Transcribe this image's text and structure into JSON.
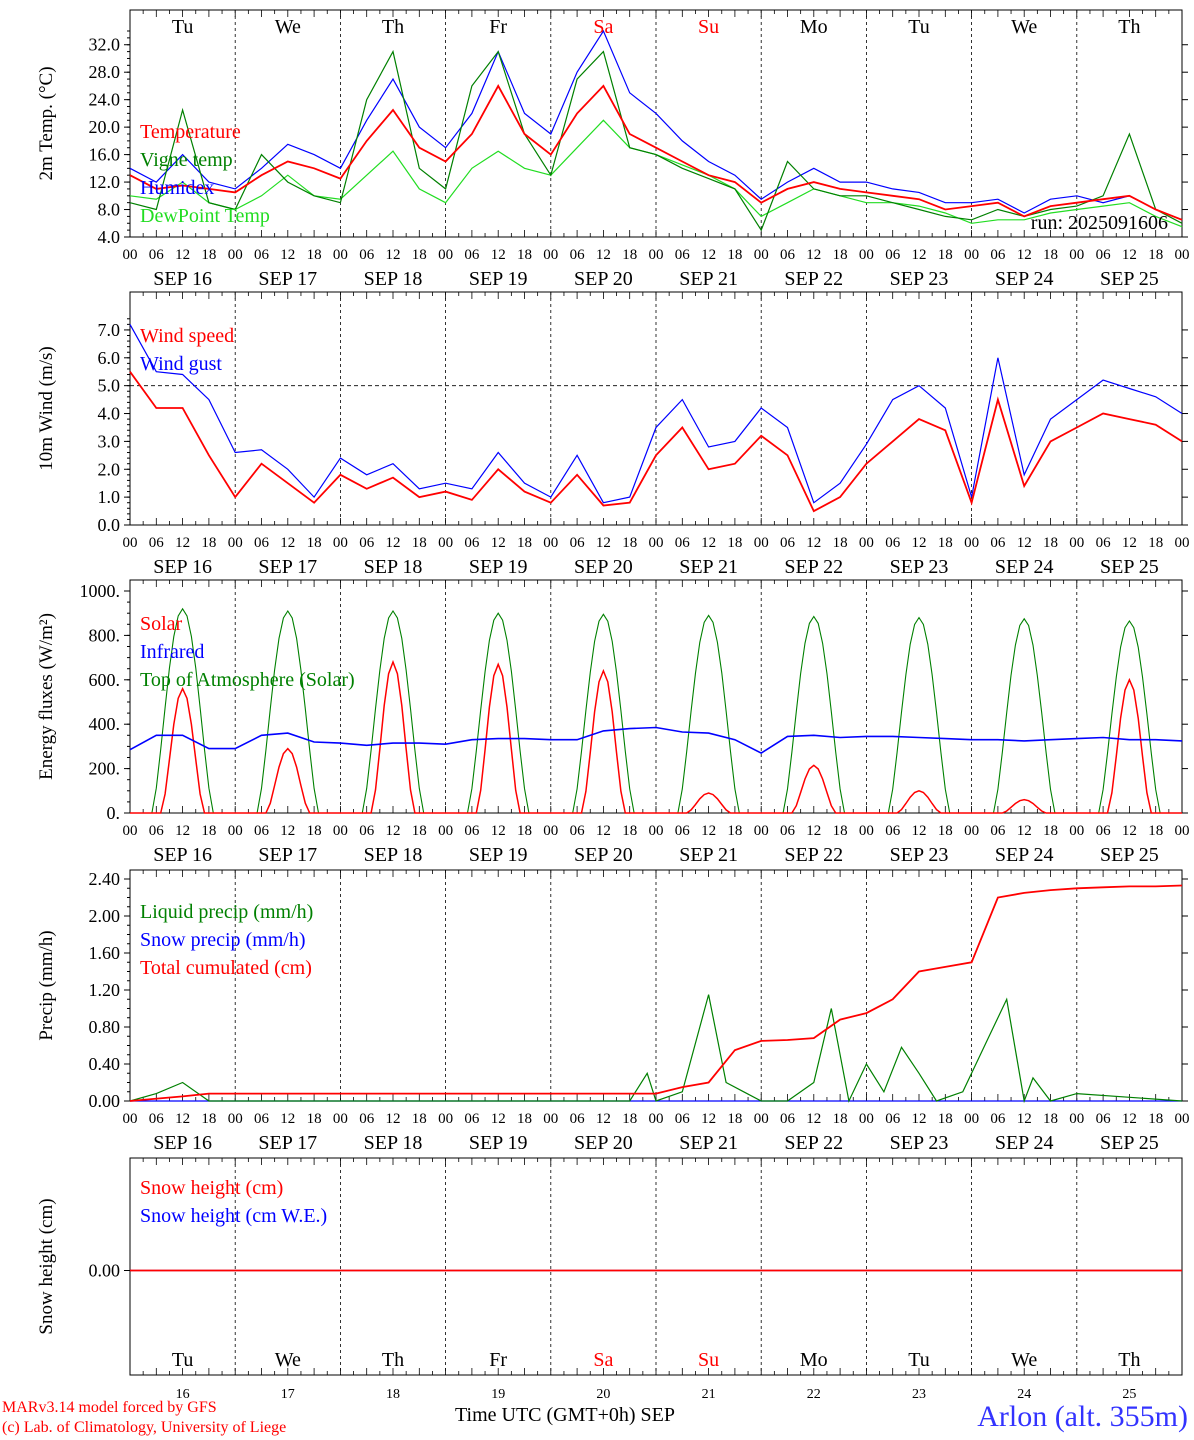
{
  "run_label": "run: 2025091606",
  "day_names": [
    "Tu",
    "We",
    "Th",
    "Fr",
    "Sa",
    "Su",
    "Mo",
    "Tu",
    "We",
    "Th"
  ],
  "weekend_days": [
    "Sa",
    "Su"
  ],
  "date_labels": [
    "SEP 16",
    "SEP 17",
    "SEP 18",
    "SEP 19",
    "SEP 20",
    "SEP 21",
    "SEP 22",
    "SEP 23",
    "SEP 24",
    "SEP 25"
  ],
  "bottom_day_numbers": [
    "16",
    "17",
    "18",
    "19",
    "20",
    "21",
    "22",
    "23",
    "24",
    "25"
  ],
  "hour_ticks": [
    "00",
    "06",
    "12",
    "18"
  ],
  "footer": {
    "credit1": "MARv3.14 model forced by GFS",
    "credit2": "(c) Lab. of Climatology, University of Liege",
    "xtitle": "Time UTC (GMT+0h) SEP",
    "station": "Arlon (alt. 355m)"
  },
  "colors": {
    "red": "#ff0000",
    "green": "#008000",
    "blue": "#0000ff",
    "lightgreen": "#22dd22"
  },
  "chart_data": [
    {
      "type": "line",
      "ylabel": "2m Temp. (°C)",
      "ylim": [
        4,
        34
      ],
      "yticks": [
        "4.0",
        "8.0",
        "12.0",
        "16.0",
        "20.0",
        "24.0",
        "28.0",
        "32.0"
      ],
      "x_unit": "hours since SEP 16 00 UTC",
      "legend": [
        "Temperature",
        "Vigne temp",
        "Humidex",
        "DewPoint Temp"
      ],
      "series": [
        {
          "name": "Temperature",
          "color": "red",
          "x": [
            0,
            6,
            12,
            18,
            24,
            30,
            36,
            42,
            48,
            54,
            60,
            66,
            72,
            78,
            84,
            90,
            96,
            102,
            108,
            114,
            120,
            126,
            132,
            138,
            144,
            150,
            156,
            162,
            168,
            174,
            180,
            186,
            192,
            198,
            204,
            210,
            216,
            222,
            228,
            234,
            240
          ],
          "y": [
            13,
            11,
            11.5,
            11,
            10.5,
            13,
            15,
            14,
            12.5,
            18,
            22.5,
            17,
            15,
            19,
            26,
            19,
            16,
            22,
            26,
            19,
            17,
            15,
            13,
            12,
            9,
            11,
            12,
            11,
            10.5,
            10,
            9.5,
            8,
            8.5,
            9,
            7,
            8.5,
            9,
            9.5,
            10,
            8,
            6.5
          ]
        },
        {
          "name": "Vigne temp",
          "color": "green",
          "x": [
            0,
            6,
            12,
            18,
            24,
            30,
            36,
            42,
            48,
            54,
            60,
            66,
            72,
            78,
            84,
            90,
            96,
            102,
            108,
            114,
            120,
            126,
            132,
            138,
            144,
            150,
            156,
            162,
            168,
            174,
            180,
            186,
            192,
            198,
            204,
            210,
            216,
            222,
            228,
            234,
            240
          ],
          "y": [
            9,
            8,
            22.5,
            9,
            8,
            16,
            12,
            10,
            9,
            24,
            31,
            14,
            11,
            26,
            31,
            19,
            13,
            27,
            31,
            17,
            16,
            14,
            12.5,
            11,
            5,
            15,
            11,
            10,
            10,
            9,
            8,
            7,
            6.5,
            8,
            7,
            8,
            8.5,
            10,
            19,
            8,
            6
          ]
        },
        {
          "name": "Humidex",
          "color": "blue",
          "x": [
            0,
            6,
            12,
            18,
            24,
            30,
            36,
            42,
            48,
            54,
            60,
            66,
            72,
            78,
            84,
            90,
            96,
            102,
            108,
            114,
            120,
            126,
            132,
            138,
            144,
            150,
            156,
            162,
            168,
            174,
            180,
            186,
            192,
            198,
            204,
            210,
            216,
            222,
            228,
            234,
            240
          ],
          "y": [
            14,
            12,
            16,
            12,
            11,
            14,
            17.5,
            16,
            14,
            21,
            27,
            20,
            17,
            22,
            31,
            22,
            19,
            28,
            34,
            25,
            22,
            18,
            15,
            13,
            9.5,
            12,
            14,
            12,
            12,
            11,
            10.5,
            9,
            9,
            9.5,
            7.5,
            9.5,
            10,
            9,
            10,
            8,
            6.5
          ]
        },
        {
          "name": "DewPoint Temp",
          "color": "lightgreen",
          "x": [
            0,
            6,
            12,
            18,
            24,
            30,
            36,
            42,
            48,
            54,
            60,
            66,
            72,
            78,
            84,
            90,
            96,
            102,
            108,
            114,
            120,
            126,
            132,
            138,
            144,
            150,
            156,
            162,
            168,
            174,
            180,
            186,
            192,
            198,
            204,
            210,
            216,
            222,
            228,
            234,
            240
          ],
          "y": [
            10,
            9.5,
            12,
            9,
            8,
            10,
            13,
            10,
            9.5,
            13,
            16.5,
            11,
            9,
            14,
            16.5,
            14,
            13,
            17,
            21,
            17,
            16,
            14.5,
            13,
            11,
            7,
            9,
            11,
            10,
            9,
            9,
            8.5,
            7.5,
            6,
            6.5,
            6.5,
            7.5,
            8,
            8.5,
            9,
            7,
            5.5
          ]
        }
      ]
    },
    {
      "type": "line",
      "ylabel": "10m Wind (m/s)",
      "ylim": [
        0,
        7.5
      ],
      "yticks": [
        "0.0",
        "1.0",
        "2.0",
        "3.0",
        "4.0",
        "5.0",
        "6.0",
        "7.0"
      ],
      "reference_line": 5.0,
      "legend": [
        "Wind speed",
        "Wind gust"
      ],
      "series": [
        {
          "name": "Wind speed",
          "color": "red",
          "x": [
            0,
            6,
            12,
            18,
            24,
            30,
            36,
            42,
            48,
            54,
            60,
            66,
            72,
            78,
            84,
            90,
            96,
            102,
            108,
            114,
            120,
            126,
            132,
            138,
            144,
            150,
            156,
            162,
            168,
            174,
            180,
            186,
            192,
            198,
            204,
            210,
            216,
            222,
            228,
            234,
            240
          ],
          "y": [
            5.5,
            4.2,
            4.2,
            2.5,
            1.0,
            2.2,
            1.5,
            0.8,
            1.8,
            1.3,
            1.7,
            1.0,
            1.2,
            0.9,
            2.0,
            1.2,
            0.8,
            1.8,
            0.7,
            0.8,
            2.5,
            3.5,
            2.0,
            2.2,
            3.2,
            2.5,
            0.5,
            1.0,
            2.2,
            3.0,
            3.8,
            3.4,
            0.8,
            4.5,
            1.4,
            3.0,
            3.5,
            4.0,
            3.8,
            3.6,
            3.0
          ]
        },
        {
          "name": "Wind gust",
          "color": "blue",
          "x": [
            0,
            6,
            12,
            18,
            24,
            30,
            36,
            42,
            48,
            54,
            60,
            66,
            72,
            78,
            84,
            90,
            96,
            102,
            108,
            114,
            120,
            126,
            132,
            138,
            144,
            150,
            156,
            162,
            168,
            174,
            180,
            186,
            192,
            198,
            204,
            210,
            216,
            222,
            228,
            234,
            240
          ],
          "y": [
            7.2,
            5.5,
            5.4,
            4.5,
            2.6,
            2.7,
            2.0,
            1.0,
            2.4,
            1.8,
            2.2,
            1.3,
            1.5,
            1.3,
            2.6,
            1.5,
            1.0,
            2.5,
            0.8,
            1.0,
            3.5,
            4.5,
            2.8,
            3.0,
            4.2,
            3.5,
            0.8,
            1.5,
            2.9,
            4.5,
            5.0,
            4.2,
            1.0,
            6.0,
            1.8,
            3.8,
            4.5,
            5.2,
            4.9,
            4.6,
            4.0
          ]
        }
      ]
    },
    {
      "type": "line",
      "ylabel": "Energy fluxes (W/m²)",
      "ylim": [
        0,
        1000
      ],
      "yticks": [
        "0.",
        "200.",
        "400.",
        "600.",
        "800.",
        "1000."
      ],
      "legend": [
        "Solar",
        "Infrared",
        "Top of Atmosphere (Solar)"
      ],
      "solar_peaks": [
        560,
        290,
        680,
        670,
        640,
        90,
        215,
        100,
        60,
        600
      ],
      "toa_peaks": [
        920,
        910,
        910,
        900,
        895,
        890,
        885,
        880,
        875,
        865
      ],
      "series": [
        {
          "name": "Infrared",
          "color": "blue",
          "x": [
            0,
            6,
            12,
            18,
            24,
            30,
            36,
            42,
            48,
            54,
            60,
            66,
            72,
            78,
            84,
            90,
            96,
            102,
            108,
            114,
            120,
            126,
            132,
            138,
            144,
            150,
            156,
            162,
            168,
            174,
            180,
            186,
            192,
            198,
            204,
            210,
            216,
            222,
            228,
            234,
            240
          ],
          "y": [
            285,
            350,
            350,
            290,
            290,
            350,
            360,
            320,
            315,
            305,
            315,
            315,
            310,
            330,
            335,
            335,
            330,
            330,
            370,
            380,
            385,
            365,
            360,
            330,
            270,
            345,
            350,
            340,
            345,
            345,
            340,
            335,
            330,
            330,
            325,
            330,
            335,
            340,
            330,
            330,
            325
          ]
        }
      ]
    },
    {
      "type": "line",
      "ylabel": "Precip (mm/h)",
      "ylim": [
        0,
        2.4
      ],
      "yticks": [
        "0.00",
        "0.40",
        "0.80",
        "1.20",
        "1.60",
        "2.00",
        "2.40"
      ],
      "legend": [
        "Liquid precip (mm/h)",
        "Snow precip (mm/h)",
        "Total cumulated (cm)"
      ],
      "series": [
        {
          "name": "Total cumulated (cm)",
          "color": "red",
          "x": [
            0,
            12,
            18,
            120,
            126,
            132,
            138,
            144,
            150,
            156,
            162,
            168,
            174,
            180,
            186,
            192,
            198,
            204,
            210,
            216,
            222,
            228,
            234,
            240
          ],
          "y": [
            0.0,
            0.05,
            0.08,
            0.08,
            0.15,
            0.2,
            0.55,
            0.65,
            0.66,
            0.68,
            0.88,
            0.95,
            1.1,
            1.4,
            1.45,
            1.5,
            2.2,
            2.25,
            2.28,
            2.3,
            2.31,
            2.32,
            2.32,
            2.33
          ]
        },
        {
          "name": "Liquid precip (mm/h)",
          "color": "green",
          "x": [
            0,
            6,
            12,
            18,
            24,
            114,
            118,
            120,
            126,
            132,
            136,
            140,
            144,
            150,
            156,
            160,
            164,
            168,
            172,
            176,
            180,
            184,
            190,
            196,
            200,
            204,
            206,
            210,
            216,
            240
          ],
          "y": [
            0,
            0.08,
            0.2,
            0,
            0,
            0,
            0.3,
            0,
            0.1,
            1.15,
            0.2,
            0.1,
            0,
            0,
            0.2,
            1.0,
            0,
            0.4,
            0.1,
            0.58,
            0.3,
            0,
            0.1,
            0.7,
            1.1,
            0,
            0.25,
            0,
            0.08,
            0
          ]
        },
        {
          "name": "Snow precip (mm/h)",
          "color": "blue",
          "x": [
            0,
            240
          ],
          "y": [
            0,
            0
          ]
        }
      ]
    },
    {
      "type": "line",
      "ylabel": "Snow height (cm)",
      "yticks": [
        "0.00"
      ],
      "legend": [
        "Snow height (cm)",
        "Snow height (cm W.E.)"
      ],
      "series": [
        {
          "name": "Snow height (cm)",
          "color": "red",
          "x": [
            0,
            240
          ],
          "y": [
            0,
            0
          ]
        },
        {
          "name": "Snow height (cm W.E.)",
          "color": "blue",
          "x": [
            0,
            240
          ],
          "y": [
            0,
            0
          ]
        }
      ]
    }
  ]
}
